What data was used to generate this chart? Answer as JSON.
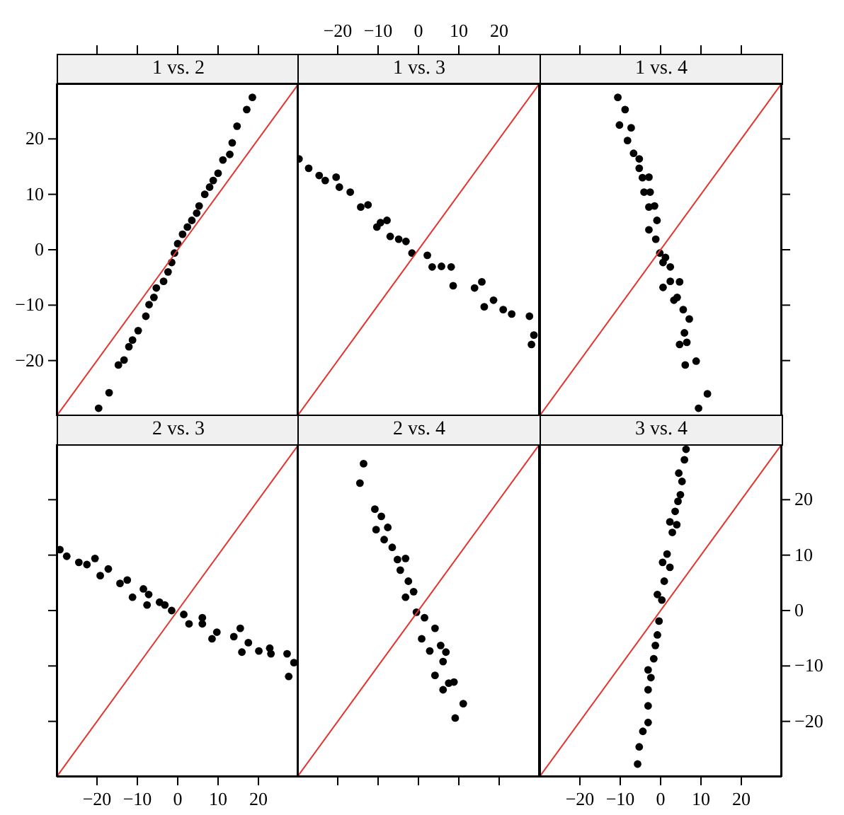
{
  "chart_data": [
    {
      "type": "scatter",
      "title": "1 vs. 2",
      "xlim": [
        -30,
        30
      ],
      "xticks": [
        -20,
        -10,
        0,
        10,
        20
      ],
      "ylim": [
        -30,
        30
      ],
      "yticks": [
        -20,
        -10,
        0,
        10,
        20
      ],
      "tick_labels": "y",
      "series": [
        {
          "type": "scatter",
          "color": "#000000",
          "marker": "circle",
          "x": [
            -19.6,
            -17,
            -14.7,
            -13.3,
            -12.1,
            -11.2,
            -9.8,
            -7.9,
            -7.1,
            -5.9,
            -5.3,
            -3.5,
            -2.4,
            -1.5,
            -0.8,
            0,
            1.2,
            2.4,
            3.5,
            4.7,
            5.3,
            6.7,
            7.9,
            8.8,
            10,
            11.2,
            12.9,
            13.5,
            14.7,
            17.1,
            18.5
          ],
          "values": [
            -28.6,
            -25.8,
            -20.8,
            -19.9,
            -17.5,
            -16.3,
            -14.6,
            -12,
            -9.9,
            -8.6,
            -6.9,
            -5.7,
            -4,
            -2.3,
            -0.6,
            1.1,
            2.8,
            4.1,
            5.3,
            6.6,
            7.9,
            10,
            11.3,
            12.5,
            13.8,
            16.2,
            17.2,
            19.3,
            22.3,
            25.3,
            27.5
          ]
        },
        {
          "type": "line",
          "color": "#e3342f",
          "marker": "none",
          "x": [
            -30,
            30
          ],
          "values": [
            -30,
            30
          ]
        }
      ]
    },
    {
      "type": "scatter",
      "title": "1 vs. 3",
      "xlim": [
        -30,
        30
      ],
      "xticks": [
        -20,
        -10,
        0,
        10,
        20
      ],
      "ylim": [
        -30,
        30
      ],
      "yticks": [
        -20,
        -10,
        0,
        10,
        20
      ],
      "tick_labels": "x",
      "series": [
        {
          "type": "scatter",
          "color": "#000000",
          "marker": "circle",
          "x": [
            -29.6,
            -27.2,
            -24.6,
            -23.1,
            -20.4,
            -19.6,
            -16.9,
            -14.3,
            -12.5,
            -10.3,
            -9.4,
            -7.8,
            -7,
            -4.9,
            -3.1,
            -1.6,
            2.2,
            3.4,
            5.7,
            8.1,
            8.6,
            13.9,
            15.7,
            16.3,
            18.6,
            21,
            23.1,
            27.5,
            28.6,
            28
          ],
          "values": [
            16.4,
            14.7,
            13.4,
            12.5,
            13.1,
            11.3,
            10.4,
            7.7,
            8.1,
            4.1,
            4.9,
            5.3,
            2.4,
            1.9,
            1.5,
            -0.6,
            -1,
            -3.1,
            -3,
            -3.1,
            -6.5,
            -6.9,
            -5.8,
            -10.3,
            -9.1,
            -10.8,
            -11.6,
            -12,
            -15.4,
            -17.1
          ]
        },
        {
          "type": "line",
          "color": "#e3342f",
          "marker": "none",
          "x": [
            -30,
            30
          ],
          "values": [
            -30,
            30
          ]
        }
      ]
    },
    {
      "type": "scatter",
      "title": "1 vs. 4",
      "xlim": [
        -30,
        30
      ],
      "xticks": [
        -20,
        -10,
        0,
        10,
        20
      ],
      "ylim": [
        -30,
        30
      ],
      "yticks": [
        -20,
        -10,
        0,
        10,
        20
      ],
      "tick_labels": false,
      "series": [
        {
          "type": "scatter",
          "color": "#000000",
          "marker": "circle",
          "x": [
            -10.6,
            -8.8,
            -10.2,
            -7.3,
            -8.2,
            -6.7,
            -5.3,
            -5.3,
            -4.5,
            -2.9,
            -4.1,
            -2.6,
            -2.9,
            -1.5,
            -2.9,
            -0.9,
            -1.2,
            -0.2,
            0.6,
            1.2,
            2.4,
            0.6,
            2.4,
            4.7,
            3.3,
            4.1,
            5.6,
            7.1,
            5.9,
            6.5,
            4.7,
            8.8,
            6.1,
            11.6,
            9.4
          ],
          "values": [
            27.5,
            25.3,
            22.5,
            22,
            19.7,
            17.4,
            16.4,
            14.7,
            13,
            13.1,
            10.4,
            10.4,
            7.7,
            7.9,
            3.6,
            5.3,
            1.9,
            -0.6,
            -2.3,
            -1.4,
            -3.1,
            -6.8,
            -5.7,
            -5.8,
            -9.1,
            -8.6,
            -10.8,
            -12.5,
            -15,
            -16.7,
            -17.1,
            -20.1,
            -20.8,
            -26,
            -28.6
          ]
        },
        {
          "type": "line",
          "color": "#e3342f",
          "marker": "none",
          "x": [
            -30,
            30
          ],
          "values": [
            -30,
            30
          ]
        }
      ]
    },
    {
      "type": "scatter",
      "title": "2 vs. 3",
      "xlim": [
        -30,
        30
      ],
      "xticks": [
        -20,
        -10,
        0,
        10,
        20
      ],
      "ylim": [
        -30,
        30
      ],
      "yticks": [
        -20,
        -10,
        0,
        10,
        20
      ],
      "tick_labels": "x",
      "series": [
        {
          "type": "scatter",
          "color": "#000000",
          "marker": "circle",
          "x": [
            -29.2,
            -27.5,
            -24.5,
            -22.5,
            -20.5,
            -19.2,
            -17.2,
            -14.3,
            -12.5,
            -11.2,
            -8.5,
            -7.2,
            -7.6,
            -4.5,
            -3.2,
            -1.5,
            1.5,
            2.8,
            6.1,
            6.1,
            8.5,
            9.7,
            13.9,
            15.5,
            15.9,
            17.5,
            20.1,
            22.8,
            23.1,
            27.1,
            27.5,
            28.8
          ],
          "values": [
            11,
            9.8,
            8.7,
            8.3,
            9.4,
            6.3,
            7.5,
            4.9,
            5.5,
            2.4,
            3.9,
            2.9,
            1,
            1.5,
            1,
            0,
            -0.7,
            -2.4,
            -1.3,
            -2.4,
            -5.1,
            -3.9,
            -4.7,
            -3.2,
            -7.5,
            -5.8,
            -7.3,
            -6.8,
            -7.8,
            -7.8,
            -11.9,
            -9.4
          ]
        },
        {
          "type": "line",
          "color": "#e3342f",
          "marker": "none",
          "x": [
            -30,
            30
          ],
          "values": [
            -30,
            30
          ]
        }
      ]
    },
    {
      "type": "scatter",
      "title": "2 vs. 4",
      "xlim": [
        -30,
        30
      ],
      "xticks": [
        -20,
        -10,
        0,
        10,
        20
      ],
      "ylim": [
        -30,
        30
      ],
      "yticks": [
        -20,
        -10,
        0,
        10,
        20
      ],
      "tick_labels": false,
      "series": [
        {
          "type": "scatter",
          "color": "#000000",
          "marker": "circle",
          "x": [
            -13.6,
            -14.5,
            -10.8,
            -9.2,
            -10.5,
            -7.6,
            -8.5,
            -6.5,
            -5.2,
            -3.2,
            -4.5,
            -2.5,
            -3.2,
            -1.2,
            -0.5,
            1.5,
            0.8,
            4.1,
            2.8,
            5.5,
            6.8,
            4.1,
            6.1,
            6.1,
            7.5,
            8.8,
            9.1,
            11.1
          ],
          "values": [
            26.5,
            23,
            18.3,
            17,
            14.6,
            15,
            12.8,
            11.4,
            9.2,
            9.4,
            7.3,
            5.3,
            2.4,
            3.4,
            -0.3,
            -1.3,
            -5.1,
            -3.2,
            -7.3,
            -6.3,
            -7.5,
            -11.7,
            -9.2,
            -14.3,
            -13.1,
            -12.9,
            -19.4,
            -16.8
          ]
        },
        {
          "type": "line",
          "color": "#e3342f",
          "marker": "none",
          "x": [
            -30,
            30
          ],
          "values": [
            -30,
            30
          ]
        }
      ]
    },
    {
      "type": "scatter",
      "title": "3 vs. 4",
      "xlim": [
        -30,
        30
      ],
      "xticks": [
        -20,
        -10,
        0,
        10,
        20
      ],
      "ylim": [
        -30,
        30
      ],
      "yticks": [
        -20,
        -10,
        0,
        10,
        20
      ],
      "series": [
        {
          "type": "scatter",
          "color": "#000000",
          "marker": "circle",
          "x": [
            -5.7,
            -5.3,
            -4.4,
            -3.1,
            -3.1,
            -3.1,
            -2.4,
            -3.1,
            -1.7,
            -1.3,
            -0.8,
            -0.4,
            -0.8,
            0.3,
            0.9,
            2.3,
            0.5,
            1.6,
            2.9,
            2.3,
            4,
            3.6,
            4.3,
            4.9,
            5.3,
            4.5,
            5.9,
            6.3
          ],
          "values": [
            -27.7,
            -24.6,
            -21.8,
            -20.2,
            -17.2,
            -14.3,
            -12.1,
            -10.7,
            -8.7,
            -6.3,
            -4.4,
            -1.9,
            2.9,
            1.9,
            5.3,
            7.8,
            8.7,
            10.2,
            14.1,
            16,
            15.5,
            17.9,
            19.7,
            20.9,
            23.3,
            24.8,
            27.2,
            29.1
          ]
        },
        {
          "type": "line",
          "color": "#e3342f",
          "marker": "none",
          "x": [
            -30,
            30
          ],
          "values": [
            -30,
            30
          ]
        }
      ]
    }
  ]
}
